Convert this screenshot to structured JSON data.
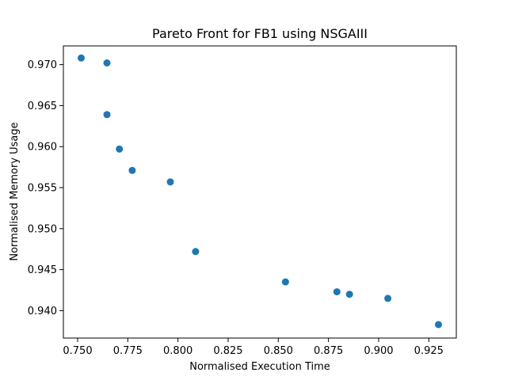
{
  "chart_data": {
    "type": "scatter",
    "title": "Pareto Front for FB1 using NSGAIII",
    "xlabel": "Normalised Execution Time",
    "ylabel": "Normalised Memory Usage",
    "xlim": [
      0.7429,
      0.9387
    ],
    "ylim": [
      0.93666,
      0.97228
    ],
    "xticks": [
      "0.750",
      "0.775",
      "0.800",
      "0.825",
      "0.850",
      "0.875",
      "0.900",
      "0.925"
    ],
    "yticks": [
      "0.940",
      "0.945",
      "0.950",
      "0.955",
      "0.960",
      "0.965",
      "0.970"
    ],
    "grid": false,
    "marker_color": "#1f77b4",
    "points": [
      {
        "x": 0.7518,
        "y": 0.9708
      },
      {
        "x": 0.7646,
        "y": 0.9702
      },
      {
        "x": 0.7646,
        "y": 0.9639
      },
      {
        "x": 0.7708,
        "y": 0.9597
      },
      {
        "x": 0.7772,
        "y": 0.9571
      },
      {
        "x": 0.7962,
        "y": 0.9557
      },
      {
        "x": 0.8088,
        "y": 0.9472
      },
      {
        "x": 0.8536,
        "y": 0.9435
      },
      {
        "x": 0.8792,
        "y": 0.9423
      },
      {
        "x": 0.8855,
        "y": 0.942
      },
      {
        "x": 0.9046,
        "y": 0.9415
      },
      {
        "x": 0.9298,
        "y": 0.9383
      }
    ]
  }
}
